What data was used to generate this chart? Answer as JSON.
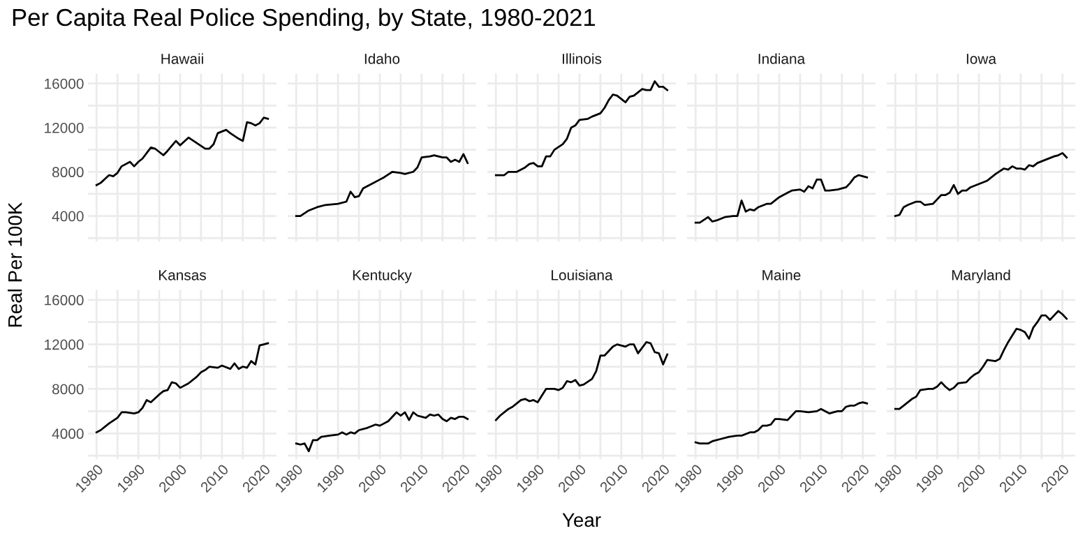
{
  "chart_data": [
    {
      "type": "line",
      "title": "Per Capita Real Police Spending, by State, 1980-2021",
      "ylabel": "Real Per 100K",
      "subtitle": "Hawaii",
      "tick_labels": "y",
      "color": "#000000",
      "grid": true,
      "xlim": [
        1977.95,
        2023.05
      ],
      "ylim": [
        1700,
        16900
      ],
      "xticks": [
        1980,
        {
          "value": 1985,
          "label": null
        },
        1990,
        {
          "value": 1995,
          "label": null
        },
        2000,
        {
          "value": 2005,
          "label": null
        },
        2010,
        {
          "value": 2015,
          "label": null
        },
        2020
      ],
      "yticks": [
        {
          "value": 2000,
          "label": null
        },
        4000,
        {
          "value": 6000,
          "label": null
        },
        8000,
        {
          "value": 10000,
          "label": null
        },
        12000,
        {
          "value": 14000,
          "label": null
        },
        16000
      ],
      "x": [
        1980,
        1981,
        1983,
        1984,
        1985,
        1986,
        1988,
        1989,
        1990,
        1991,
        1993,
        1994,
        1996,
        1997,
        1999,
        2000,
        2002,
        2004,
        2006,
        2007,
        2008,
        2009,
        2011,
        2012,
        2014,
        2015,
        2016,
        2017,
        2018,
        2019,
        2020,
        2021
      ],
      "values": [
        6800,
        7000,
        7700,
        7600,
        7900,
        8500,
        8900,
        8500,
        8900,
        9200,
        10200,
        10100,
        9500,
        9900,
        10800,
        10400,
        11100,
        10600,
        10100,
        10100,
        10500,
        11500,
        11800,
        11500,
        11000,
        10800,
        12500,
        12400,
        12200,
        12400,
        12900,
        12800
      ]
    },
    {
      "type": "line",
      "subtitle": "Idaho",
      "tick_labels": false,
      "color": "#000000",
      "grid": true,
      "xlim": [
        1977.95,
        2023.05
      ],
      "ylim": [
        1700,
        16900
      ],
      "xticks": [
        1980,
        {
          "value": 1985,
          "label": null
        },
        1990,
        {
          "value": 1995,
          "label": null
        },
        2000,
        {
          "value": 2005,
          "label": null
        },
        2010,
        {
          "value": 2015,
          "label": null
        },
        2020
      ],
      "yticks": [
        {
          "value": 2000,
          "label": null
        },
        4000,
        {
          "value": 6000,
          "label": null
        },
        8000,
        {
          "value": 10000,
          "label": null
        },
        12000,
        {
          "value": 14000,
          "label": null
        },
        16000
      ],
      "x": [
        1980,
        1981,
        1983,
        1985,
        1987,
        1990,
        1992,
        1993,
        1994,
        1995,
        1996,
        1998,
        2000,
        2001,
        2003,
        2005,
        2006,
        2008,
        2009,
        2010,
        2012,
        2013,
        2015,
        2016,
        2017,
        2018,
        2019,
        2020,
        2021
      ],
      "values": [
        4000,
        4000,
        4500,
        4800,
        5000,
        5100,
        5300,
        6200,
        5700,
        5800,
        6500,
        6900,
        7300,
        7500,
        8000,
        7900,
        7800,
        8000,
        8400,
        9300,
        9400,
        9500,
        9300,
        9300,
        8900,
        9100,
        8900,
        9600,
        8800
      ]
    },
    {
      "type": "line",
      "subtitle": "Illinois",
      "tick_labels": false,
      "color": "#000000",
      "grid": true,
      "xlim": [
        1977.95,
        2023.05
      ],
      "ylim": [
        1700,
        16900
      ],
      "xticks": [
        1980,
        {
          "value": 1985,
          "label": null
        },
        1990,
        {
          "value": 1995,
          "label": null
        },
        2000,
        {
          "value": 2005,
          "label": null
        },
        2010,
        {
          "value": 2015,
          "label": null
        },
        2020
      ],
      "yticks": [
        {
          "value": 2000,
          "label": null
        },
        4000,
        {
          "value": 6000,
          "label": null
        },
        8000,
        {
          "value": 10000,
          "label": null
        },
        12000,
        {
          "value": 14000,
          "label": null
        },
        16000
      ],
      "x": [
        1980,
        1982,
        1983,
        1985,
        1987,
        1988,
        1989,
        1990,
        1991,
        1992,
        1993,
        1994,
        1996,
        1997,
        1998,
        1999,
        2000,
        2002,
        2003,
        2005,
        2006,
        2007,
        2008,
        2009,
        2011,
        2012,
        2013,
        2015,
        2016,
        2017,
        2018,
        2019,
        2020,
        2021
      ],
      "values": [
        7700,
        7700,
        8000,
        8000,
        8400,
        8700,
        8800,
        8500,
        8500,
        9400,
        9400,
        10000,
        10500,
        11000,
        12000,
        12200,
        12700,
        12800,
        13000,
        13300,
        13800,
        14500,
        15000,
        14900,
        14300,
        14800,
        14900,
        15500,
        15400,
        15400,
        16200,
        15700,
        15700,
        15400
      ]
    },
    {
      "type": "line",
      "subtitle": "Indiana",
      "tick_labels": false,
      "color": "#000000",
      "grid": true,
      "xlim": [
        1977.95,
        2023.05
      ],
      "ylim": [
        1700,
        16900
      ],
      "xticks": [
        1980,
        {
          "value": 1985,
          "label": null
        },
        1990,
        {
          "value": 1995,
          "label": null
        },
        2000,
        {
          "value": 2005,
          "label": null
        },
        2010,
        {
          "value": 2015,
          "label": null
        },
        2020
      ],
      "yticks": [
        {
          "value": 2000,
          "label": null
        },
        4000,
        {
          "value": 6000,
          "label": null
        },
        8000,
        {
          "value": 10000,
          "label": null
        },
        12000,
        {
          "value": 14000,
          "label": null
        },
        16000
      ],
      "x": [
        1980,
        1981,
        1983,
        1984,
        1985,
        1987,
        1989,
        1990,
        1991,
        1992,
        1993,
        1994,
        1995,
        1997,
        1998,
        2000,
        2002,
        2003,
        2005,
        2006,
        2007,
        2008,
        2009,
        2010,
        2011,
        2012,
        2014,
        2016,
        2017,
        2018,
        2019,
        2020,
        2021
      ],
      "values": [
        3400,
        3400,
        3900,
        3500,
        3600,
        3900,
        4000,
        4000,
        5400,
        4400,
        4600,
        4500,
        4800,
        5100,
        5100,
        5700,
        6100,
        6300,
        6400,
        6200,
        6700,
        6500,
        7300,
        7300,
        6300,
        6300,
        6400,
        6600,
        7000,
        7500,
        7700,
        7600,
        7500
      ]
    },
    {
      "type": "line",
      "subtitle": "Iowa",
      "tick_labels": false,
      "color": "#000000",
      "grid": true,
      "xlim": [
        1977.95,
        2023.05
      ],
      "ylim": [
        1700,
        16900
      ],
      "xticks": [
        1980,
        {
          "value": 1985,
          "label": null
        },
        1990,
        {
          "value": 1995,
          "label": null
        },
        2000,
        {
          "value": 2005,
          "label": null
        },
        2010,
        {
          "value": 2015,
          "label": null
        },
        2020
      ],
      "yticks": [
        {
          "value": 2000,
          "label": null
        },
        4000,
        {
          "value": 6000,
          "label": null
        },
        8000,
        {
          "value": 10000,
          "label": null
        },
        12000,
        {
          "value": 14000,
          "label": null
        },
        16000
      ],
      "x": [
        1980,
        1981,
        1982,
        1983,
        1985,
        1986,
        1987,
        1989,
        1990,
        1991,
        1992,
        1993,
        1994,
        1995,
        1996,
        1997,
        1998,
        2000,
        2002,
        2004,
        2006,
        2007,
        2008,
        2009,
        2010,
        2011,
        2012,
        2013,
        2014,
        2016,
        2018,
        2019,
        2020,
        2021
      ],
      "values": [
        4000,
        4100,
        4800,
        5000,
        5300,
        5300,
        5000,
        5100,
        5500,
        5900,
        5900,
        6100,
        6800,
        6000,
        6300,
        6300,
        6600,
        6900,
        7200,
        7800,
        8300,
        8200,
        8500,
        8300,
        8300,
        8200,
        8600,
        8500,
        8800,
        9100,
        9400,
        9500,
        9700,
        9300
      ]
    },
    {
      "type": "line",
      "subtitle": "Kansas",
      "color": "#000000",
      "grid": true,
      "xlim": [
        1977.95,
        2023.05
      ],
      "ylim": [
        1700,
        16900
      ],
      "xticks": [
        1980,
        {
          "value": 1985,
          "label": null
        },
        1990,
        {
          "value": 1995,
          "label": null
        },
        2000,
        {
          "value": 2005,
          "label": null
        },
        2010,
        {
          "value": 2015,
          "label": null
        },
        2020
      ],
      "yticks": [
        {
          "value": 2000,
          "label": null
        },
        4000,
        {
          "value": 6000,
          "label": null
        },
        8000,
        {
          "value": 10000,
          "label": null
        },
        12000,
        {
          "value": 14000,
          "label": null
        },
        16000
      ],
      "x": [
        1980,
        1981,
        1983,
        1985,
        1986,
        1987,
        1989,
        1990,
        1991,
        1992,
        1993,
        1995,
        1996,
        1997,
        1998,
        1999,
        2000,
        2002,
        2004,
        2005,
        2006,
        2007,
        2009,
        2010,
        2012,
        2013,
        2014,
        2015,
        2016,
        2017,
        2018,
        2019,
        2020,
        2021
      ],
      "values": [
        4100,
        4300,
        4900,
        5400,
        5900,
        5900,
        5800,
        5900,
        6300,
        7000,
        6800,
        7500,
        7800,
        7900,
        8600,
        8500,
        8100,
        8500,
        9100,
        9500,
        9700,
        10000,
        9900,
        10100,
        9800,
        10300,
        9800,
        10000,
        9900,
        10500,
        10200,
        11900,
        12000,
        12100
      ]
    },
    {
      "type": "line",
      "subtitle": "Kentucky",
      "tick_labels": "x",
      "color": "#000000",
      "grid": true,
      "xlim": [
        1977.95,
        2023.05
      ],
      "ylim": [
        1700,
        16900
      ],
      "xticks": [
        1980,
        {
          "value": 1985,
          "label": null
        },
        1990,
        {
          "value": 1995,
          "label": null
        },
        2000,
        {
          "value": 2005,
          "label": null
        },
        2010,
        {
          "value": 2015,
          "label": null
        },
        2020
      ],
      "yticks": [
        {
          "value": 2000,
          "label": null
        },
        4000,
        {
          "value": 6000,
          "label": null
        },
        8000,
        {
          "value": 10000,
          "label": null
        },
        12000,
        {
          "value": 14000,
          "label": null
        },
        16000
      ],
      "x": [
        1980,
        1981,
        1982,
        1983,
        1984,
        1985,
        1986,
        1988,
        1990,
        1991,
        1992,
        1993,
        1994,
        1995,
        1997,
        1999,
        2000,
        2002,
        2004,
        2005,
        2006,
        2007,
        2008,
        2009,
        2011,
        2012,
        2013,
        2014,
        2015,
        2016,
        2017,
        2018,
        2019,
        2020,
        2021
      ],
      "values": [
        3100,
        3000,
        3100,
        2400,
        3400,
        3400,
        3700,
        3800,
        3900,
        4100,
        3900,
        4100,
        4000,
        4300,
        4500,
        4800,
        4700,
        5100,
        5900,
        5600,
        5900,
        5200,
        5900,
        5600,
        5400,
        5700,
        5600,
        5700,
        5300,
        5100,
        5400,
        5300,
        5500,
        5500,
        5300
      ]
    },
    {
      "type": "line",
      "subtitle": "Louisiana",
      "xlabel": "Year",
      "tick_labels": "x",
      "color": "#000000",
      "grid": true,
      "xlim": [
        1977.95,
        2023.05
      ],
      "ylim": [
        1700,
        16900
      ],
      "xticks": [
        1980,
        {
          "value": 1985,
          "label": null
        },
        1990,
        {
          "value": 1995,
          "label": null
        },
        2000,
        {
          "value": 2005,
          "label": null
        },
        2010,
        {
          "value": 2015,
          "label": null
        },
        2020
      ],
      "yticks": [
        {
          "value": 2000,
          "label": null
        },
        4000,
        {
          "value": 6000,
          "label": null
        },
        8000,
        {
          "value": 10000,
          "label": null
        },
        12000,
        {
          "value": 14000,
          "label": null
        },
        16000
      ],
      "x": [
        1980,
        1981,
        1983,
        1984,
        1985,
        1986,
        1987,
        1988,
        1989,
        1990,
        1992,
        1994,
        1995,
        1996,
        1997,
        1998,
        1999,
        2000,
        2001,
        2003,
        2004,
        2005,
        2006,
        2008,
        2009,
        2011,
        2012,
        2013,
        2014,
        2016,
        2017,
        2018,
        2019,
        2020,
        2021
      ],
      "values": [
        5200,
        5600,
        6200,
        6400,
        6700,
        7000,
        7100,
        6900,
        7000,
        6800,
        8000,
        8000,
        7900,
        8100,
        8700,
        8600,
        8800,
        8300,
        8400,
        8900,
        9600,
        11000,
        11000,
        11800,
        12000,
        11800,
        12000,
        12000,
        11200,
        12200,
        12100,
        11300,
        11200,
        10200,
        11100
      ]
    },
    {
      "type": "line",
      "subtitle": "Maine",
      "tick_labels": "x",
      "color": "#000000",
      "grid": true,
      "xlim": [
        1977.95,
        2023.05
      ],
      "ylim": [
        1700,
        16900
      ],
      "xticks": [
        1980,
        {
          "value": 1985,
          "label": null
        },
        1990,
        {
          "value": 1995,
          "label": null
        },
        2000,
        {
          "value": 2005,
          "label": null
        },
        2010,
        {
          "value": 2015,
          "label": null
        },
        2020
      ],
      "yticks": [
        {
          "value": 2000,
          "label": null
        },
        4000,
        {
          "value": 6000,
          "label": null
        },
        8000,
        {
          "value": 10000,
          "label": null
        },
        12000,
        {
          "value": 14000,
          "label": null
        },
        16000
      ],
      "x": [
        1980,
        1981,
        1982,
        1983,
        1984,
        1986,
        1988,
        1990,
        1991,
        1993,
        1994,
        1995,
        1996,
        1997,
        1998,
        1999,
        2000,
        2002,
        2003,
        2004,
        2005,
        2007,
        2009,
        2010,
        2012,
        2013,
        2014,
        2015,
        2016,
        2017,
        2018,
        2019,
        2020,
        2021
      ],
      "values": [
        3200,
        3100,
        3100,
        3100,
        3300,
        3500,
        3700,
        3800,
        3800,
        4100,
        4100,
        4300,
        4700,
        4700,
        4800,
        5300,
        5300,
        5200,
        5600,
        6000,
        6000,
        5900,
        6000,
        6200,
        5800,
        5900,
        6000,
        6000,
        6400,
        6500,
        6500,
        6700,
        6800,
        6700
      ]
    },
    {
      "type": "line",
      "subtitle": "Maryland",
      "tick_labels": "x",
      "color": "#000000",
      "grid": true,
      "xlim": [
        1977.95,
        2023.05
      ],
      "ylim": [
        1700,
        16900
      ],
      "xticks": [
        1980,
        {
          "value": 1985,
          "label": null
        },
        1990,
        {
          "value": 1995,
          "label": null
        },
        2000,
        {
          "value": 2005,
          "label": null
        },
        2010,
        {
          "value": 2015,
          "label": null
        },
        2020
      ],
      "yticks": [
        {
          "value": 2000,
          "label": null
        },
        4000,
        {
          "value": 6000,
          "label": null
        },
        8000,
        {
          "value": 10000,
          "label": null
        },
        12000,
        {
          "value": 14000,
          "label": null
        },
        16000
      ],
      "x": [
        1980,
        1981,
        1982,
        1983,
        1984,
        1985,
        1986,
        1988,
        1989,
        1990,
        1991,
        1992,
        1993,
        1994,
        1995,
        1997,
        1998,
        1999,
        2000,
        2001,
        2002,
        2004,
        2005,
        2006,
        2007,
        2008,
        2009,
        2010,
        2011,
        2012,
        2013,
        2014,
        2015,
        2016,
        2017,
        2018,
        2019,
        2020,
        2021
      ],
      "values": [
        6200,
        6200,
        6500,
        6800,
        7100,
        7300,
        7900,
        8000,
        8000,
        8200,
        8600,
        8200,
        7900,
        8100,
        8500,
        8600,
        9000,
        9300,
        9500,
        10000,
        10600,
        10500,
        10700,
        11500,
        12200,
        12800,
        13400,
        13300,
        13100,
        12500,
        13500,
        14000,
        14600,
        14600,
        14200,
        14600,
        15000,
        14700,
        14300
      ]
    }
  ]
}
